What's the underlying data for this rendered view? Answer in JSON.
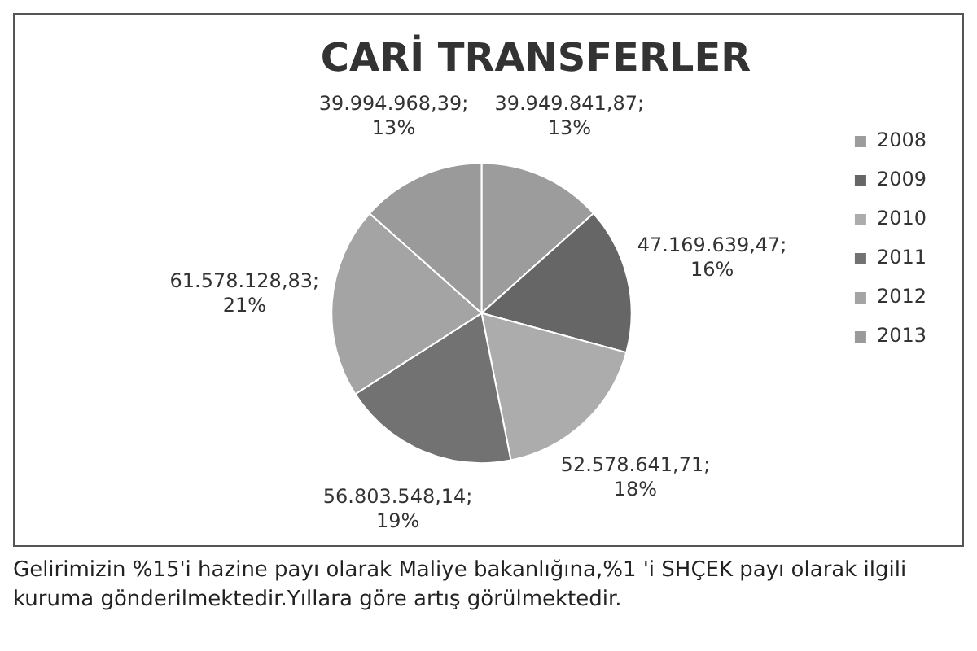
{
  "chart_data": {
    "type": "pie",
    "title": "CARİ TRANSFERLER",
    "categories": [
      "2008",
      "2009",
      "2010",
      "2011",
      "2012",
      "2013"
    ],
    "values": [
      39949841.87,
      47169639.47,
      52578641.71,
      56803548.14,
      61578128.83,
      39994968.39
    ],
    "value_labels": [
      "39.949.841,87;\n13%",
      "47.169.639,47;\n16%",
      "52.578.641,71;\n18%",
      "56.803.548,14;\n19%",
      "61.578.128,83;\n21%",
      "39.994.968,39;\n13%"
    ],
    "colors": [
      "#9c9c9c",
      "#666666",
      "#acacac",
      "#727272",
      "#a4a4a4",
      "#9a9a9a"
    ],
    "legend": "right",
    "annotations": [
      "Gelirimizin %15'i hazine payı olarak Maliye bakanlığına,%1 'i SHÇEK payı olarak ilgili kuruma gönderilmektedir.Yıllara göre artış görülmektedir."
    ]
  }
}
